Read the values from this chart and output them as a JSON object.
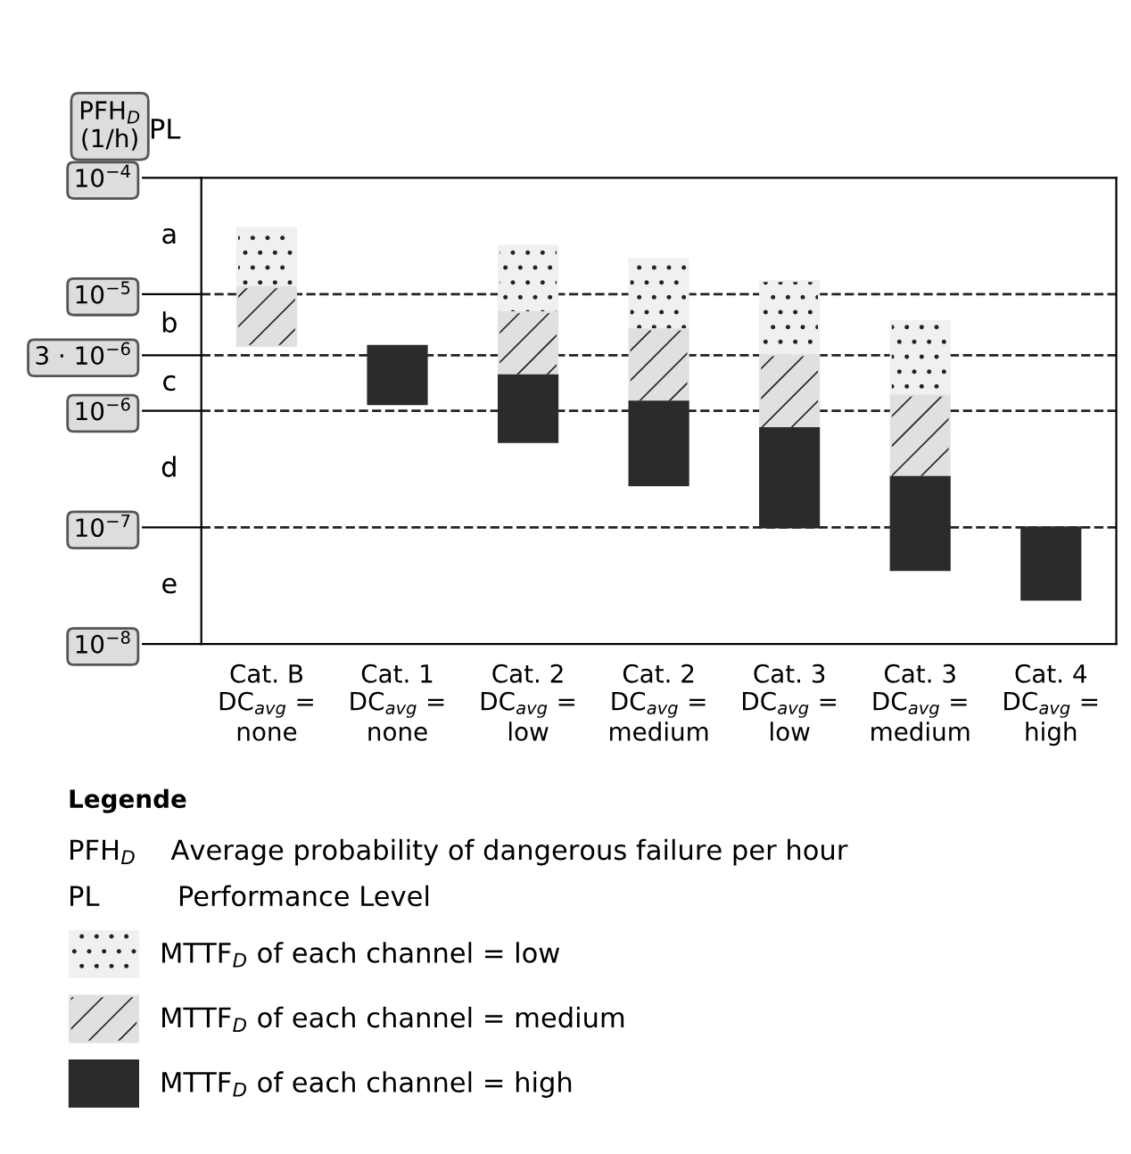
{
  "chart_data": {
    "type": "bar",
    "log": "y",
    "ylabel": "PFH$_{D}$\n(1/h)",
    "legend_title": "Legende",
    "categories": [
      "Cat. B\nDC$_{avg}$ =\nnone",
      "Cat. 1\nDC$_{avg}$ =\nnone",
      "Cat. 2\nDC$_{avg}$ =\nlow",
      "Cat. 2\nDC$_{avg}$ =\nmedium",
      "Cat. 3\nDC$_{avg}$ =\nlow",
      "Cat. 3\nDC$_{avg}$ =\nmedium",
      "Cat. 4\nDC$_{avg}$ =\nhigh"
    ],
    "series": [
      {
        "name": "MTTF$_{D}$ of each channel = low",
        "color": "#f0f0f0",
        "base": [
          1.15e-05,
          null,
          7e-06,
          5e-06,
          3e-06,
          1.35e-06,
          null
        ],
        "values": [
          2.55e-05,
          null,
          1.9e-05,
          1.5e-05,
          1e-05,
          4.55e-06,
          null
        ]
      },
      {
        "name": "MTTF$_{D}$ of each channel = medium",
        "color": "#e0e0e0",
        "base": [
          3.6e-06,
          null,
          2.02e-06,
          1.2e-06,
          7.1e-07,
          2.7e-07,
          null
        ],
        "values": [
          7.9e-06,
          null,
          4.98e-06,
          3.8e-06,
          2.29e-06,
          1.08e-06,
          null
        ]
      },
      {
        "name": "MTTF$_{D}$ of each channel = high",
        "color": "#2b2b2b",
        "base": [
          null,
          1.14e-06,
          5.4e-07,
          2.3e-07,
          1e-07,
          4.3e-08,
          2.4e-08
        ],
        "values": [
          null,
          2.46e-06,
          1.48e-06,
          9.7e-07,
          6.1e-07,
          2.27e-07,
          7.6e-08
        ]
      }
    ],
    "ylim": [
      1e-08,
      0.0001
    ],
    "yticks": [
      {
        "value": 1e-08,
        "label": "10$^{−8}$"
      },
      {
        "value": 1e-07,
        "label": "10$^{−7}$"
      },
      {
        "value": 1e-06,
        "label": "10$^{−6}$"
      },
      {
        "value": 3e-06,
        "label": "3 · 10$^{−6}$"
      },
      {
        "value": 1e-05,
        "label": "10$^{−5}$"
      },
      {
        "value": 0.0001,
        "label": "10$^{−4}$"
      }
    ],
    "ref_lines": [
      {
        "axis": "y",
        "value": 1e-05,
        "line_style": "dashed"
      },
      {
        "axis": "y",
        "value": 3e-06,
        "line_style": "dashed"
      },
      {
        "axis": "y",
        "value": 1e-06,
        "line_style": "dashed"
      },
      {
        "axis": "y",
        "value": 1e-07,
        "line_style": "dashed"
      }
    ],
    "annotations": [
      "PL",
      "a",
      "b",
      "c",
      "d",
      "e",
      "PFH$_{D}$    Average probability of dangerous failure per hour",
      "PL         Performance Level"
    ],
    "legend": "bottom",
    "grid": false
  }
}
